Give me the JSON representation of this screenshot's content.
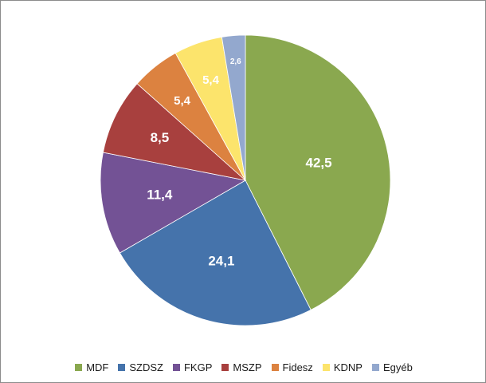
{
  "chart_data": {
    "type": "pie",
    "title": "",
    "categories": [
      "MDF",
      "SZDSZ",
      "FKGP",
      "MSZP",
      "Fidesz",
      "KDNP",
      "Egyéb"
    ],
    "values": [
      42.5,
      24.1,
      11.4,
      8.5,
      5.4,
      5.4,
      2.6
    ],
    "data_labels": [
      "42,5",
      "24,1",
      "11,4",
      "8,5",
      "5,4",
      "5,4",
      "2,6"
    ],
    "colors": [
      "#8aa84f",
      "#4573ab",
      "#735295",
      "#a8403e",
      "#dc8240",
      "#fce46c",
      "#93a8ce"
    ],
    "start": "12 o'clock",
    "direction": "clockwise",
    "legend_position": "bottom"
  }
}
